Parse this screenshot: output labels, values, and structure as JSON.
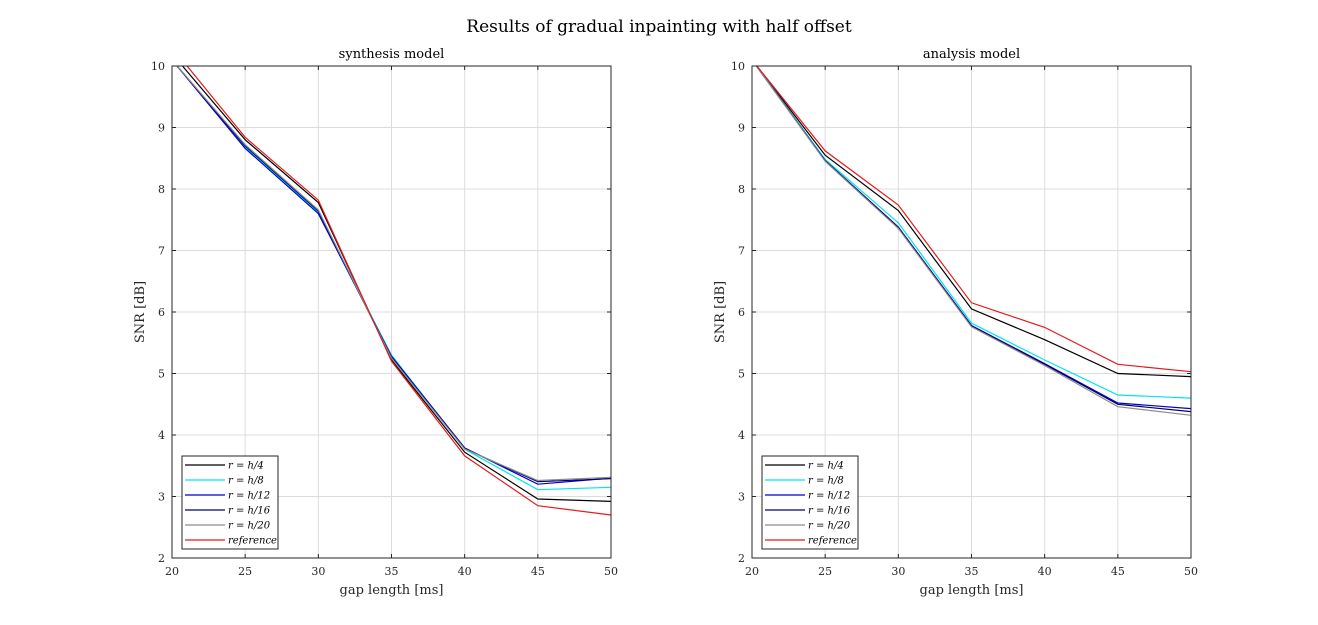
{
  "figure": {
    "title": "Results of gradual inpainting with half offset"
  },
  "chart_data": [
    {
      "type": "line",
      "title": "synthesis model",
      "xlabel": "gap length [ms]",
      "ylabel": "SNR [dB]",
      "xlim": [
        20,
        50
      ],
      "ylim": [
        2,
        10
      ],
      "xticks": [
        20,
        25,
        30,
        35,
        40,
        45,
        50
      ],
      "yticks": [
        2,
        3,
        4,
        5,
        6,
        7,
        8,
        9,
        10
      ],
      "grid": true,
      "legend_position": "bottom-left",
      "x": [
        20,
        25,
        30,
        35,
        40,
        45,
        50
      ],
      "series": [
        {
          "name": "r = h/4",
          "color": "#000000",
          "values": [
            10.2,
            8.8,
            7.78,
            5.22,
            3.72,
            2.96,
            2.92
          ]
        },
        {
          "name": "r = h/8",
          "color": "#00e5ee",
          "values": [
            10.1,
            8.68,
            7.62,
            5.3,
            3.77,
            3.11,
            3.15
          ]
        },
        {
          "name": "r = h/12",
          "color": "#0000cc",
          "values": [
            10.1,
            8.66,
            7.6,
            5.28,
            3.79,
            3.2,
            3.3
          ]
        },
        {
          "name": "r = h/16",
          "color": "#00006e",
          "values": [
            10.1,
            8.7,
            7.64,
            5.26,
            3.78,
            3.24,
            3.29
          ]
        },
        {
          "name": "r = h/20",
          "color": "#8c8c8c",
          "values": [
            10.1,
            8.72,
            7.66,
            5.25,
            3.77,
            3.26,
            3.31
          ]
        },
        {
          "name": "reference",
          "color": "#e31a1c",
          "values": [
            10.3,
            8.84,
            7.82,
            5.2,
            3.66,
            2.85,
            2.7
          ]
        }
      ]
    },
    {
      "type": "line",
      "title": "analysis model",
      "xlabel": "gap length [ms]",
      "ylabel": "SNR [dB]",
      "xlim": [
        20,
        50
      ],
      "ylim": [
        2,
        10
      ],
      "xticks": [
        20,
        25,
        30,
        35,
        40,
        45,
        50
      ],
      "yticks": [
        2,
        3,
        4,
        5,
        6,
        7,
        8,
        9,
        10
      ],
      "grid": true,
      "legend_position": "bottom-left",
      "x": [
        20,
        25,
        30,
        35,
        40,
        45,
        50
      ],
      "series": [
        {
          "name": "r = h/4",
          "color": "#000000",
          "values": [
            10.1,
            8.55,
            7.65,
            6.05,
            5.55,
            5.0,
            4.95
          ]
        },
        {
          "name": "r = h/8",
          "color": "#00e5ee",
          "values": [
            10.1,
            8.48,
            7.45,
            5.82,
            5.22,
            4.65,
            4.6
          ]
        },
        {
          "name": "r = h/12",
          "color": "#0000cc",
          "values": [
            10.1,
            8.46,
            7.38,
            5.78,
            5.16,
            4.52,
            4.43
          ]
        },
        {
          "name": "r = h/16",
          "color": "#00006e",
          "values": [
            10.1,
            8.46,
            7.38,
            5.77,
            5.15,
            4.5,
            4.38
          ]
        },
        {
          "name": "r = h/20",
          "color": "#8c8c8c",
          "values": [
            10.1,
            8.45,
            7.36,
            5.76,
            5.13,
            4.46,
            4.32
          ]
        },
        {
          "name": "reference",
          "color": "#e31a1c",
          "values": [
            10.1,
            8.62,
            7.74,
            6.15,
            5.75,
            5.15,
            5.03
          ]
        }
      ]
    }
  ]
}
